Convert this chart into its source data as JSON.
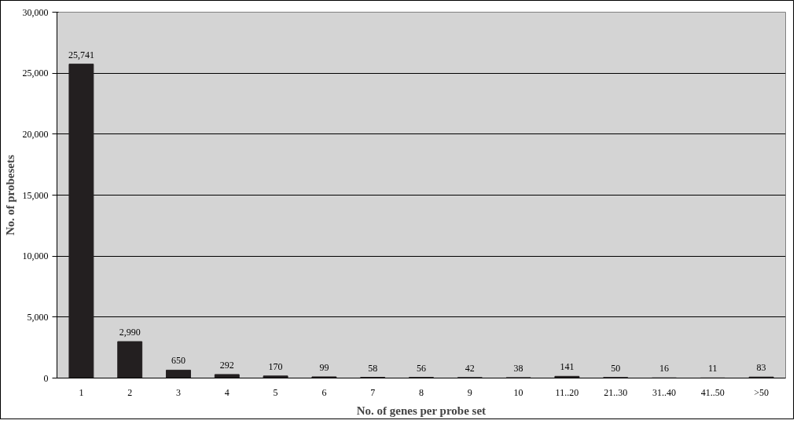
{
  "chart_data": {
    "type": "bar",
    "xlabel": "No. of genes per probe set",
    "ylabel": "No. of probesets",
    "categories": [
      "1",
      "2",
      "3",
      "4",
      "5",
      "6",
      "7",
      "8",
      "9",
      "10",
      "11..20",
      "21..30",
      "31..40",
      "41..50",
      ">50"
    ],
    "values": [
      25741,
      2990,
      650,
      292,
      170,
      99,
      58,
      56,
      42,
      38,
      141,
      50,
      16,
      11,
      83
    ],
    "value_labels": [
      "25,741",
      "2,990",
      "650",
      "292",
      "170",
      "99",
      "58",
      "56",
      "42",
      "38",
      "141",
      "50",
      "16",
      "11",
      "83"
    ],
    "color": "#231f20",
    "grid": "y",
    "ylim": [
      0,
      30000
    ],
    "yticks": [
      {
        "value": 0,
        "label": "0"
      },
      {
        "value": 5000,
        "label": "5,000"
      },
      {
        "value": 10000,
        "label": "10,000"
      },
      {
        "value": 15000,
        "label": "15,000"
      },
      {
        "value": 20000,
        "label": "20,000"
      },
      {
        "value": 25000,
        "label": "25,000"
      },
      {
        "value": 30000,
        "label": "30,000"
      }
    ]
  }
}
